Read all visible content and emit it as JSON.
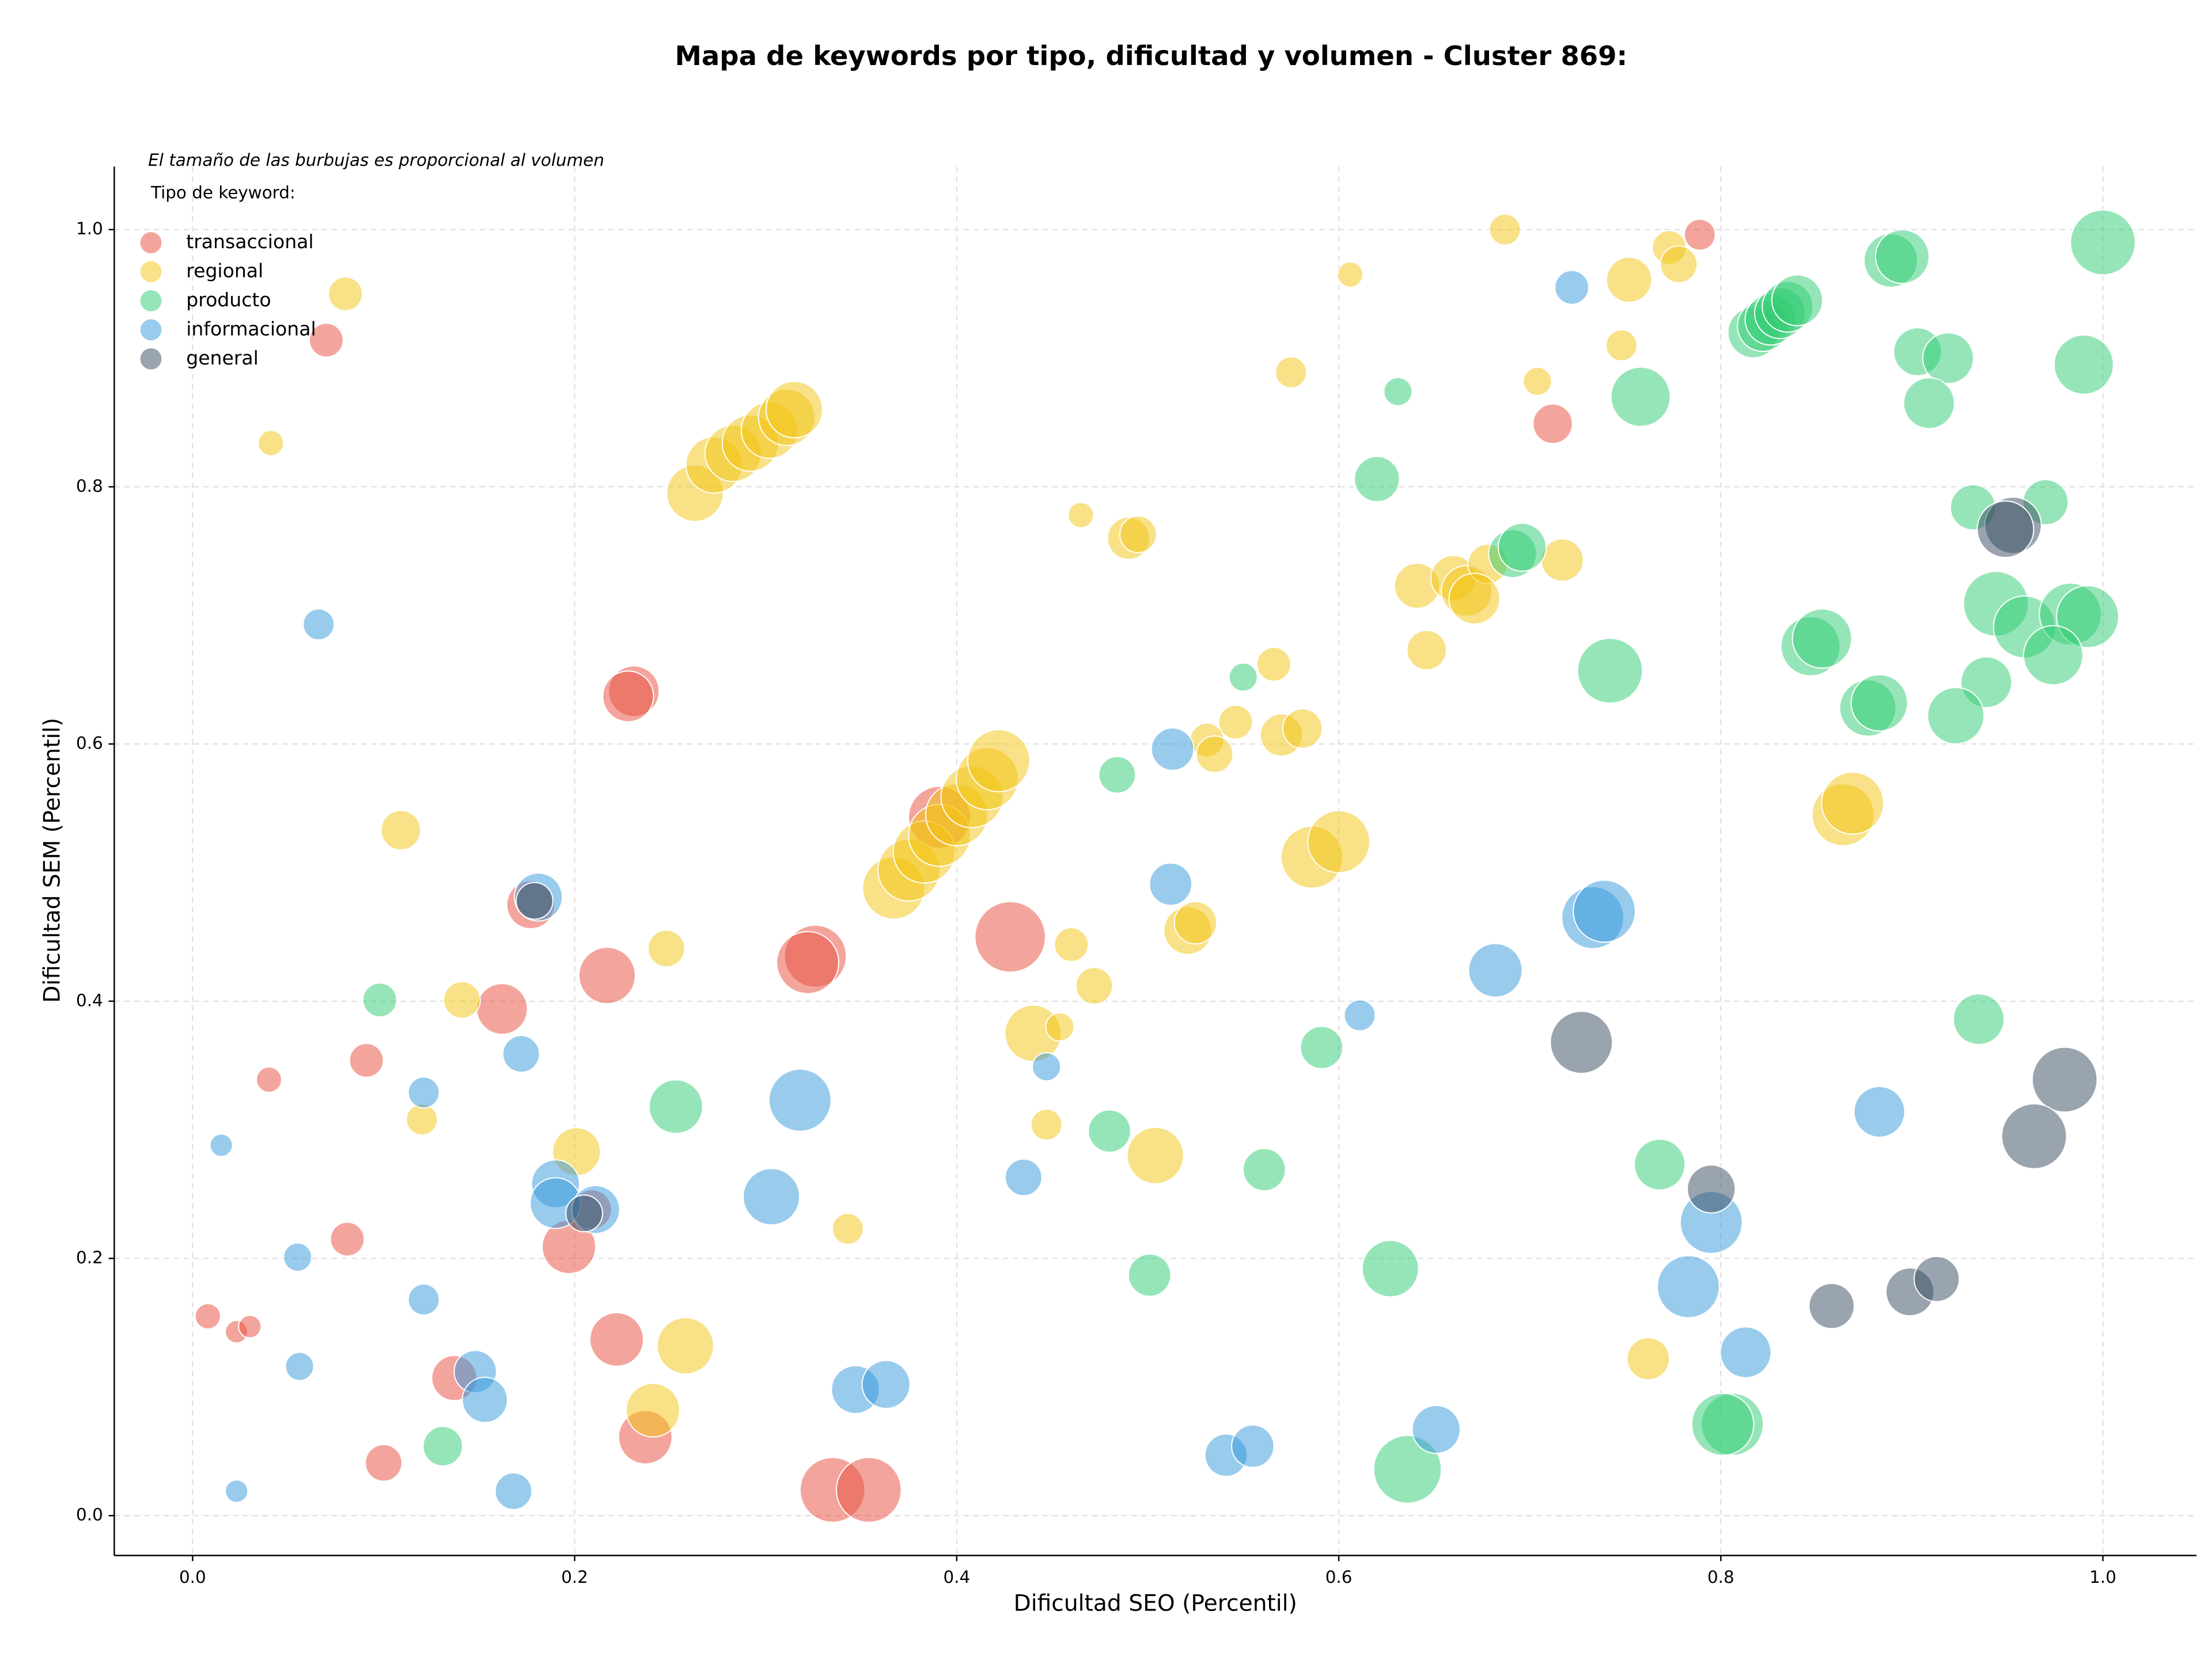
{
  "chart_data": {
    "type": "scatter",
    "title": "Mapa de keywords por tipo, dificultad y volumen - Cluster 869:",
    "annotation": "El tamaño de las burbujas es proporcional al volumen",
    "legend_title": "Tipo de keyword:",
    "legend": "upper left",
    "grid": true,
    "xlabel": "Dificultad SEO (Percentil)",
    "ylabel": "Dificultad SEM (Percentil)",
    "xlim": [
      -0.041,
      1.049
    ],
    "ylim": [
      -0.031,
      1.049
    ],
    "xticks": [
      {
        "value": 0,
        "label": "0.0"
      },
      0.2,
      0.4,
      0.6,
      0.8,
      {
        "value": 1,
        "label": "1.0"
      }
    ],
    "yticks": [
      {
        "value": 0,
        "label": "0.0"
      },
      0.2,
      0.4,
      0.6,
      0.8,
      {
        "value": 1,
        "label": "1.0"
      }
    ],
    "series": [
      {
        "name": "transaccional",
        "color": "#e74c3c",
        "x": [
          0.789,
          0.07,
          0.712,
          0.231,
          0.228,
          0.177,
          0.217,
          0.162,
          0.326,
          0.322,
          0.428,
          0.391,
          0.091,
          0.04,
          0.081,
          0.197,
          0.209,
          0.008,
          0.023,
          0.03,
          0.222,
          0.137,
          0.1,
          0.237,
          0.335,
          0.354
        ],
        "y": [
          0.996,
          0.914,
          0.849,
          0.641,
          0.637,
          0.475,
          0.42,
          0.394,
          0.435,
          0.43,
          0.45,
          0.543,
          0.354,
          0.339,
          0.215,
          0.209,
          0.238,
          0.155,
          0.143,
          0.147,
          0.137,
          0.107,
          0.041,
          0.061,
          0.02,
          0.02
        ],
        "sizes": [
          11,
          12,
          14,
          18,
          18,
          17,
          20,
          18,
          22,
          22,
          25,
          22,
          12,
          9,
          12,
          19,
          14,
          9,
          8,
          8,
          19,
          16,
          13,
          19,
          23,
          23
        ]
      },
      {
        "name": "regional",
        "color": "#f1c40f",
        "x": [
          0.687,
          0.08,
          0.041,
          0.606,
          0.752,
          0.773,
          0.778,
          0.748,
          0.575,
          0.704,
          0.263,
          0.273,
          0.283,
          0.292,
          0.302,
          0.311,
          0.315,
          0.465,
          0.49,
          0.495,
          0.641,
          0.66,
          0.667,
          0.678,
          0.717,
          0.671,
          0.646,
          0.566,
          0.546,
          0.531,
          0.535,
          0.57,
          0.581,
          0.109,
          0.367,
          0.375,
          0.383,
          0.391,
          0.4,
          0.408,
          0.416,
          0.422,
          0.586,
          0.6,
          0.864,
          0.869,
          0.521,
          0.525,
          0.248,
          0.141,
          0.46,
          0.472,
          0.44,
          0.454,
          0.12,
          0.201,
          0.447,
          0.504,
          0.343,
          0.258,
          0.241,
          0.762
        ],
        "y": [
          1.0,
          0.95,
          0.834,
          0.965,
          0.961,
          0.986,
          0.973,
          0.91,
          0.889,
          0.882,
          0.795,
          0.817,
          0.826,
          0.834,
          0.844,
          0.854,
          0.86,
          0.778,
          0.76,
          0.763,
          0.723,
          0.729,
          0.719,
          0.74,
          0.743,
          0.713,
          0.673,
          0.662,
          0.617,
          0.603,
          0.592,
          0.607,
          0.612,
          0.533,
          0.488,
          0.502,
          0.516,
          0.529,
          0.545,
          0.559,
          0.573,
          0.587,
          0.512,
          0.524,
          0.545,
          0.554,
          0.455,
          0.461,
          0.441,
          0.401,
          0.444,
          0.412,
          0.375,
          0.38,
          0.308,
          0.283,
          0.304,
          0.28,
          0.223,
          0.132,
          0.082,
          0.122
        ],
        "sizes": [
          11,
          12,
          9,
          9,
          16,
          12,
          13,
          11,
          11,
          10,
          20,
          20,
          20,
          20,
          20,
          20,
          20,
          9,
          15,
          13,
          16,
          16,
          18,
          14,
          15,
          18,
          14,
          12,
          12,
          12,
          13,
          15,
          14,
          14,
          22,
          22,
          22,
          22,
          22,
          22,
          22,
          22,
          22,
          22,
          22,
          22,
          17,
          15,
          13,
          13,
          12,
          13,
          20,
          10,
          11,
          17,
          11,
          20,
          11,
          20,
          19,
          15
        ]
      },
      {
        "name": "producto",
        "color": "#2ecc71",
        "x": [
          1.0,
          0.889,
          0.895,
          0.903,
          0.919,
          0.99,
          0.909,
          0.758,
          0.631,
          0.817,
          0.822,
          0.826,
          0.831,
          0.835,
          0.84,
          0.62,
          0.932,
          0.97,
          0.691,
          0.696,
          0.944,
          0.959,
          0.983,
          0.992,
          0.847,
          0.853,
          0.742,
          0.974,
          0.877,
          0.883,
          0.939,
          0.923,
          0.55,
          0.484,
          0.098,
          0.591,
          0.935,
          0.253,
          0.48,
          0.561,
          0.768,
          0.501,
          0.627,
          0.806,
          0.801,
          0.131,
          0.636
        ],
        "y": [
          0.99,
          0.976,
          0.979,
          0.905,
          0.9,
          0.895,
          0.865,
          0.87,
          0.874,
          0.92,
          0.925,
          0.93,
          0.935,
          0.94,
          0.945,
          0.806,
          0.784,
          0.788,
          0.748,
          0.753,
          0.709,
          0.691,
          0.701,
          0.699,
          0.676,
          0.682,
          0.657,
          0.669,
          0.628,
          0.632,
          0.648,
          0.622,
          0.652,
          0.576,
          0.401,
          0.364,
          0.386,
          0.318,
          0.299,
          0.269,
          0.273,
          0.187,
          0.192,
          0.071,
          0.071,
          0.054,
          0.036
        ],
        "sizes": [
          23,
          19,
          19,
          17,
          18,
          21,
          18,
          21,
          10,
          18,
          18,
          18,
          18,
          18,
          18,
          16,
          16,
          16,
          17,
          17,
          23,
          22,
          22,
          22,
          21,
          21,
          23,
          21,
          20,
          20,
          18,
          20,
          10,
          13,
          12,
          15,
          18,
          19,
          15,
          15,
          18,
          15,
          20,
          22,
          22,
          14,
          24
        ]
      },
      {
        "name": "informacional",
        "color": "#3498db",
        "x": [
          0.722,
          0.066,
          0.513,
          0.181,
          0.512,
          0.733,
          0.739,
          0.682,
          0.172,
          0.611,
          0.447,
          0.121,
          0.015,
          0.318,
          0.883,
          0.19,
          0.19,
          0.211,
          0.303,
          0.435,
          0.055,
          0.795,
          0.783,
          0.121,
          0.056,
          0.813,
          0.148,
          0.153,
          0.347,
          0.363,
          0.651,
          0.541,
          0.555,
          0.168,
          0.023
        ],
        "y": [
          0.955,
          0.693,
          0.596,
          0.481,
          0.491,
          0.465,
          0.47,
          0.424,
          0.359,
          0.389,
          0.349,
          0.329,
          0.288,
          0.323,
          0.314,
          0.258,
          0.243,
          0.238,
          0.248,
          0.263,
          0.201,
          0.228,
          0.178,
          0.168,
          0.116,
          0.127,
          0.112,
          0.09,
          0.098,
          0.102,
          0.067,
          0.047,
          0.054,
          0.019,
          0.019
        ],
        "sizes": [
          12,
          11,
          15,
          17,
          15,
          22,
          22,
          19,
          13,
          11,
          10,
          11,
          8,
          22,
          18,
          17,
          18,
          17,
          20,
          13,
          10,
          22,
          22,
          11,
          10,
          18,
          15,
          16,
          17,
          17,
          17,
          15,
          15,
          13,
          8
        ]
      },
      {
        "name": "general",
        "color": "#34495e",
        "x": [
          0.953,
          0.949,
          0.727,
          0.98,
          0.964,
          0.795,
          0.858,
          0.899,
          0.913,
          0.179,
          0.205
        ],
        "y": [
          0.77,
          0.767,
          0.368,
          0.339,
          0.295,
          0.254,
          0.163,
          0.174,
          0.184,
          0.478,
          0.235
        ],
        "sizes": [
          20,
          20,
          22,
          23,
          23,
          17,
          16,
          17,
          16,
          13,
          13
        ]
      }
    ]
  }
}
